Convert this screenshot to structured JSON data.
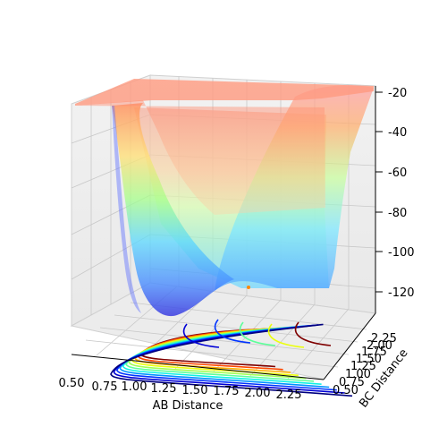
{
  "chart_data": {
    "type": "surface",
    "title": "",
    "xlabel": "AB Distance",
    "ylabel": "BC Distance",
    "zlabel": "",
    "x_ticks": [
      "0.50",
      "0.75",
      "1.00",
      "1.25",
      "1.50",
      "1.75",
      "2.00",
      "2.25"
    ],
    "y_ticks": [
      "0.50",
      "0.75",
      "1.00",
      "1.25",
      "1.50",
      "1.75",
      "2.00",
      "2.25"
    ],
    "z_ticks": [
      "-20",
      "-40",
      "-60",
      "-80",
      "-100",
      "-120"
    ],
    "xlim": [
      0.5,
      2.5
    ],
    "ylim": [
      0.5,
      2.5
    ],
    "zlim": [
      -130,
      -20
    ],
    "grid": true,
    "colormap": "jet",
    "surface": {
      "description_of_shape": "potential energy surface with a deep L-shaped valley; minimum near AB=1.0, BC=0.75",
      "min_z": -128,
      "max_z": -20
    },
    "contour_levels": [
      -125,
      -115,
      -105,
      -95,
      -85,
      -75,
      -65,
      -55,
      -45,
      -35,
      -25
    ],
    "contour_colors": [
      "#00007f",
      "#0000d6",
      "#0034ff",
      "#0094ff",
      "#10f2e4",
      "#5dff9a",
      "#a1ff55",
      "#ebff0c",
      "#ffaf00",
      "#ff4800",
      "#7f0000"
    ]
  }
}
